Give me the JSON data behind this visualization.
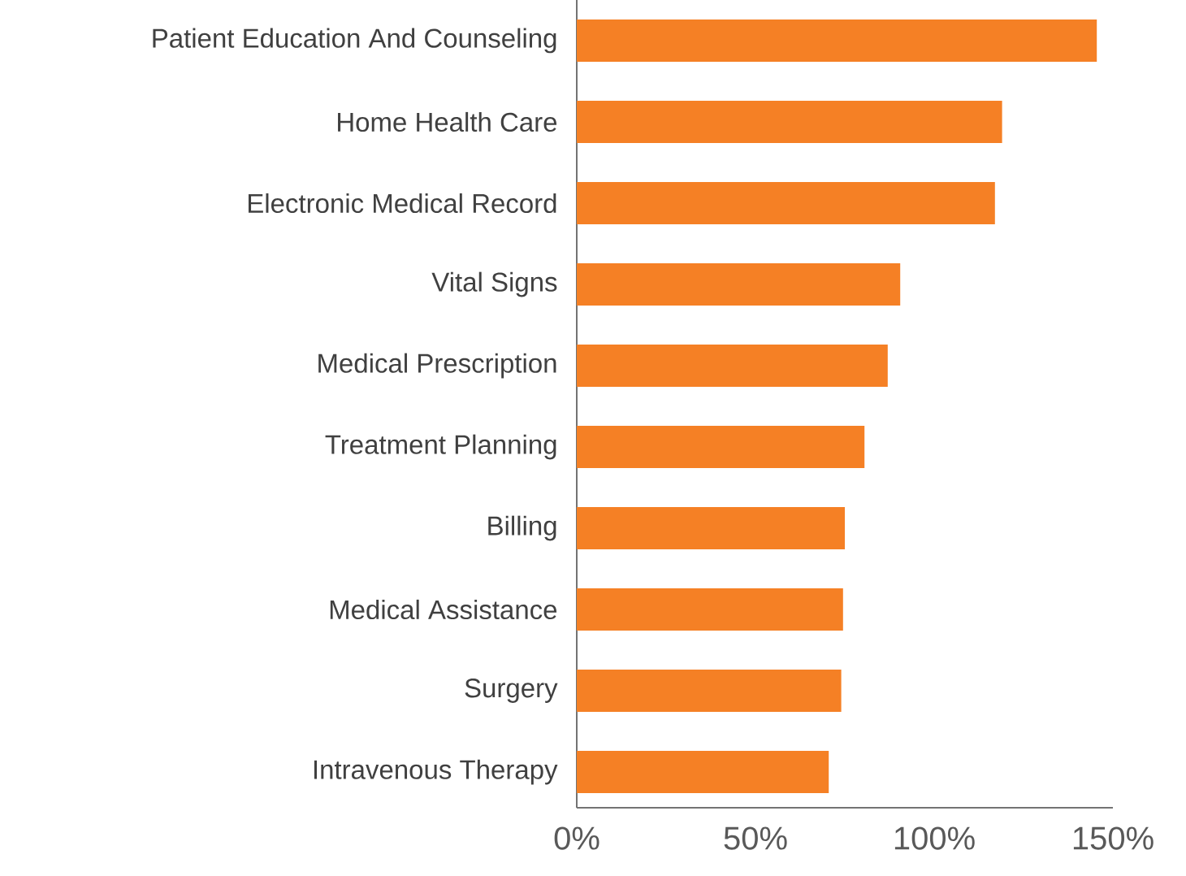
{
  "chart_data": {
    "type": "bar",
    "orientation": "horizontal",
    "categories": [
      "Patient Education And Counseling",
      "Home Health Care",
      "Electronic Medical Record",
      "Vital Signs",
      "Medical Prescription",
      "Treatment Planning",
      "Billing",
      "Medical Assistance",
      "Surgery",
      "Intravenous Therapy"
    ],
    "values": [
      145.5,
      119,
      117,
      90.5,
      87,
      80.5,
      75,
      74.5,
      74,
      70.5
    ],
    "color": "#f58025",
    "xlim": [
      0,
      150
    ],
    "xticks": [
      {
        "value": 0,
        "label": "0%"
      },
      {
        "value": 50,
        "label": "50%"
      },
      {
        "value": 100,
        "label": "100%"
      },
      {
        "value": 150,
        "label": "150%"
      }
    ],
    "grid": false
  }
}
